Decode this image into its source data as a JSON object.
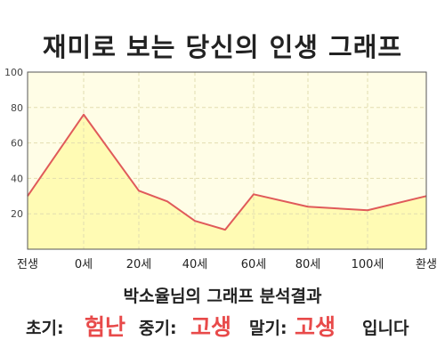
{
  "title": "재미로 보는 당신의 인생 그래프",
  "chart_data": {
    "type": "area",
    "x": [
      "전생",
      "0세",
      "20세",
      "40세",
      "60세",
      "80세",
      "100세",
      "환생"
    ],
    "points": [
      {
        "x": "전생",
        "y": 30
      },
      {
        "x": "0세",
        "y": 76
      },
      {
        "x": "20세",
        "y": 33
      },
      {
        "x": "30세",
        "y": 27
      },
      {
        "x": "40세",
        "y": 16
      },
      {
        "x": "50세",
        "y": 11
      },
      {
        "x": "60세",
        "y": 31
      },
      {
        "x": "80세",
        "y": 24
      },
      {
        "x": "100세",
        "y": 22
      },
      {
        "x": "환생",
        "y": 30
      }
    ],
    "y_ticks": [
      "100",
      "80",
      "60",
      "40",
      "20"
    ],
    "ylim": [
      0,
      100
    ],
    "grid": true,
    "colors": {
      "line": "#e05a5a",
      "fill": "#fffbb4",
      "plot_bg": "#fffde6"
    }
  },
  "summary": "박소율님의 그래프 분석결과",
  "verdict": {
    "early_label": "초기:",
    "early_value": "험난",
    "mid_label": "중기:",
    "mid_value": "고생",
    "late_label": "말기:",
    "late_value": "고생",
    "suffix": "입니다"
  }
}
